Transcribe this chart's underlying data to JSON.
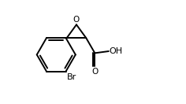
{
  "bg_color": "#ffffff",
  "line_color": "#000000",
  "line_width": 1.4,
  "font_size": 7.5,
  "figsize": [
    2.36,
    1.32
  ],
  "dpi": 100,
  "xlim": [
    0,
    10
  ],
  "ylim": [
    0,
    5.59
  ]
}
